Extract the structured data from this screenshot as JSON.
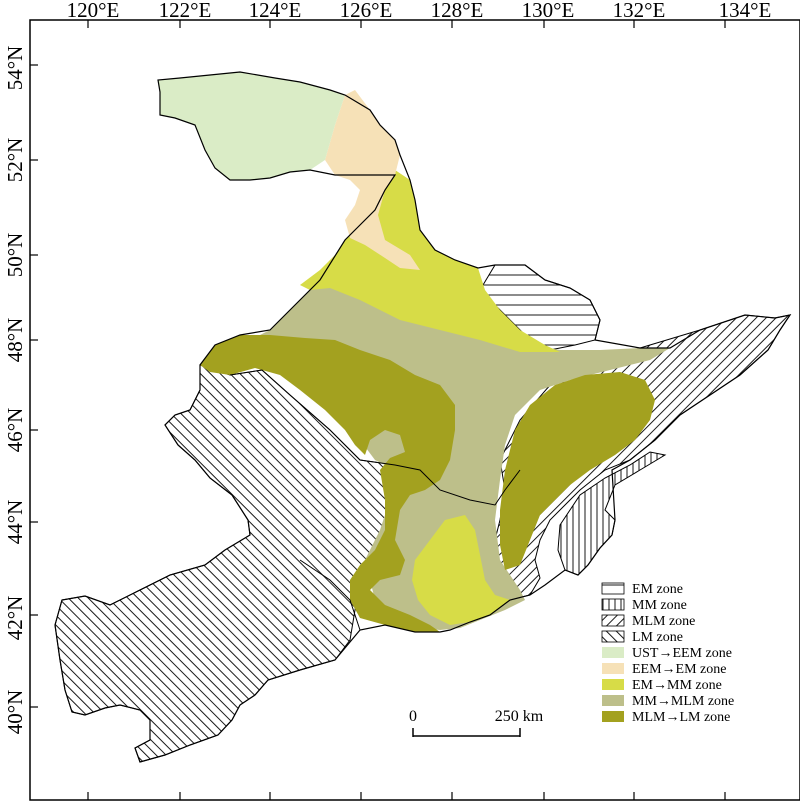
{
  "map": {
    "lon_labels": [
      "120°E",
      "122°E",
      "124°E",
      "126°E",
      "128°E",
      "130°E",
      "132°E",
      "134°E"
    ],
    "lat_labels": [
      "54°N",
      "52°N",
      "50°N",
      "48°N",
      "46°N",
      "44°N",
      "42°N",
      "40°N"
    ],
    "scale_bar": {
      "start": "0",
      "end": "250 km"
    },
    "legend": [
      {
        "key": "em",
        "label": "EM zone",
        "fill": "hatch-horizontal",
        "color": "#ffffff"
      },
      {
        "key": "mm",
        "label": "MM zone",
        "fill": "hatch-vertical",
        "color": "#ffffff"
      },
      {
        "key": "mlm",
        "label": "MLM zone",
        "fill": "hatch-diagonal",
        "color": "#ffffff"
      },
      {
        "key": "lm",
        "label": "LM zone",
        "fill": "hatch-backdiag",
        "color": "#ffffff"
      },
      {
        "key": "ust_eem",
        "label": "UST→EEM zone",
        "fill": "solid",
        "color": "#daecc6"
      },
      {
        "key": "eem_em",
        "label": "EEM→EM zone",
        "fill": "solid",
        "color": "#f6e1b7"
      },
      {
        "key": "em_mm",
        "label": "EM→MM zone",
        "fill": "solid",
        "color": "#d7dc47"
      },
      {
        "key": "mm_mlm",
        "label": "MM→MLM zone",
        "fill": "solid",
        "color": "#bdbf8a"
      },
      {
        "key": "mlm_lm",
        "label": "MLM→LM zone",
        "fill": "solid",
        "color": "#a3a11f"
      }
    ]
  }
}
